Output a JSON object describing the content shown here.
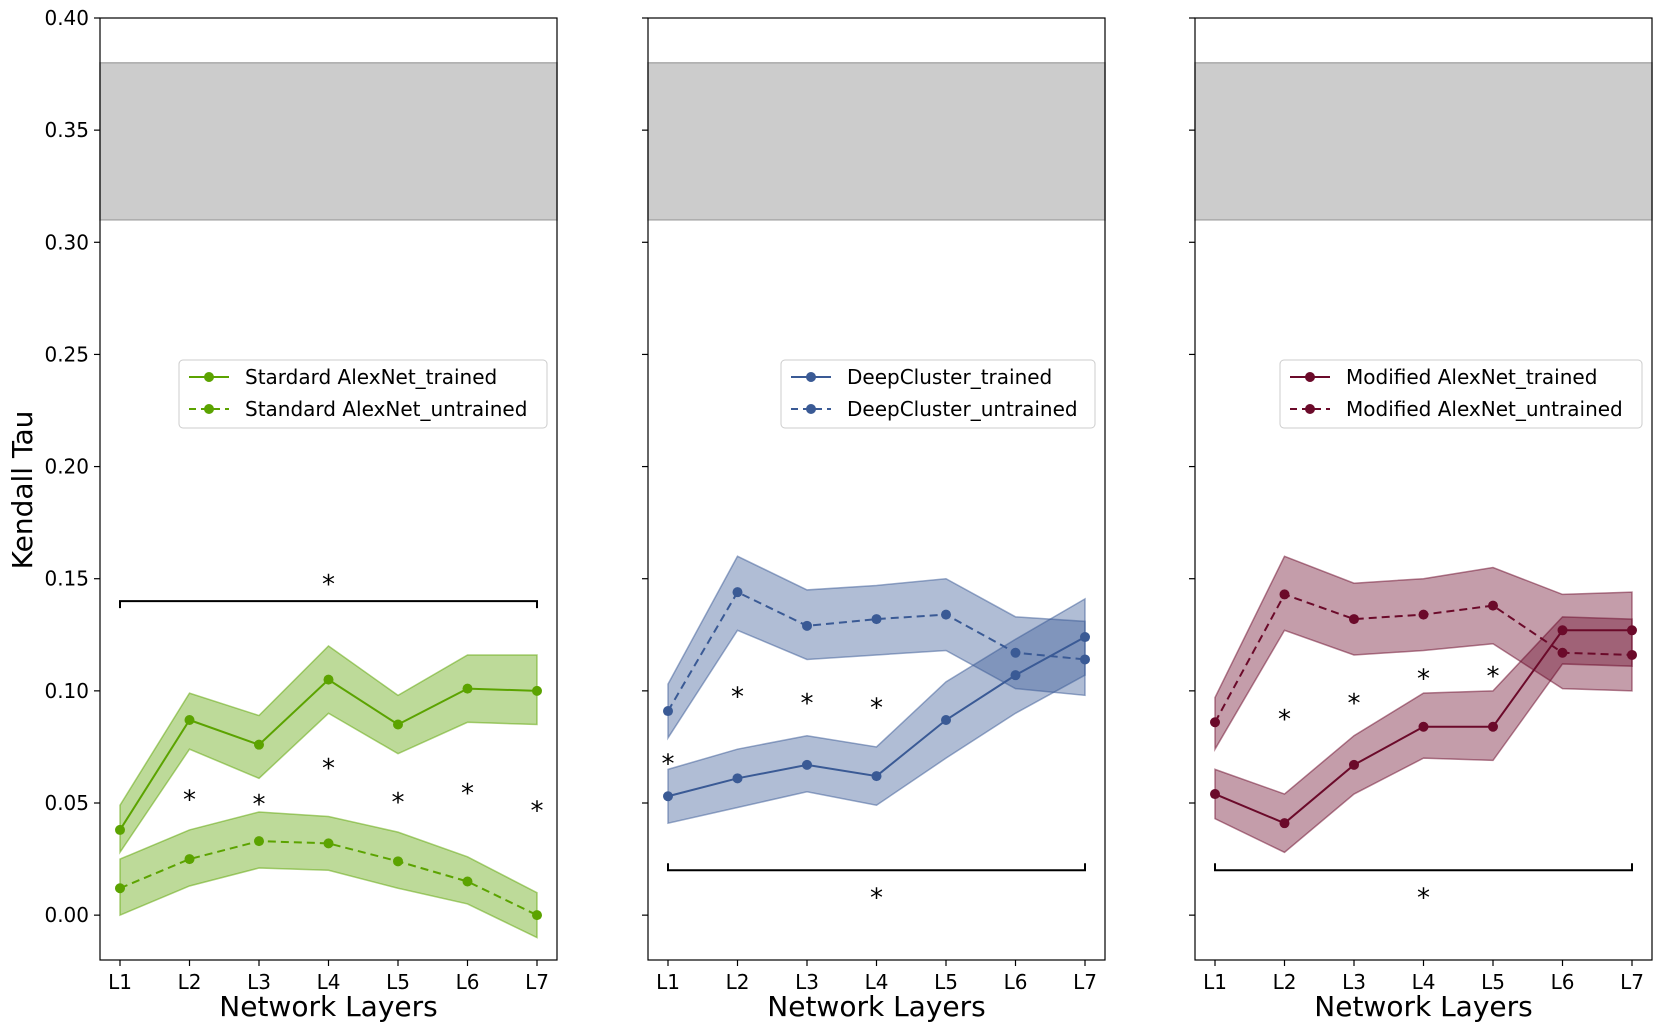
{
  "chart_data": [
    {
      "type": "line",
      "categories": [
        "L1",
        "L2",
        "L3",
        "L4",
        "L5",
        "L6",
        "L7"
      ],
      "ylabel": "Kendall Tau",
      "xlabel": "Network Layers",
      "ylim": [
        -0.02,
        0.4
      ],
      "yticks": [
        "0.00",
        "0.05",
        "0.10",
        "0.15",
        "0.20",
        "0.25",
        "0.30",
        "0.35",
        "0.40"
      ],
      "reference_band": [
        0.31,
        0.38
      ],
      "grid": false,
      "legend_position": "center-right",
      "color": "#5ba300",
      "series": [
        {
          "name": "Stardard AlexNet_trained",
          "style": "solid",
          "values": [
            0.038,
            0.087,
            0.076,
            0.105,
            0.085,
            0.101,
            0.1
          ],
          "band_low": [
            0.028,
            0.074,
            0.061,
            0.09,
            0.072,
            0.086,
            0.085
          ],
          "band_high": [
            0.049,
            0.099,
            0.089,
            0.12,
            0.098,
            0.116,
            0.116
          ]
        },
        {
          "name": "Standard AlexNet_untrained",
          "style": "dashed",
          "values": [
            0.012,
            0.025,
            0.033,
            0.032,
            0.024,
            0.015,
            0.0
          ],
          "band_low": [
            0.0,
            0.013,
            0.021,
            0.02,
            0.012,
            0.005,
            -0.01
          ],
          "band_high": [
            0.025,
            0.038,
            0.046,
            0.044,
            0.037,
            0.026,
            0.01
          ]
        }
      ],
      "annotations": [
        {
          "text": "*",
          "x": 1,
          "y": 0.052
        },
        {
          "text": "*",
          "x": 2,
          "y": 0.05
        },
        {
          "text": "*",
          "x": 3,
          "y": 0.066
        },
        {
          "text": "*",
          "x": 4,
          "y": 0.051
        },
        {
          "text": "*",
          "x": 5,
          "y": 0.055
        },
        {
          "text": "*",
          "x": 6,
          "y": 0.047
        }
      ],
      "bracket": {
        "from": 0,
        "to": 6,
        "y": 0.14,
        "label": "*",
        "label_above": true
      }
    },
    {
      "type": "line",
      "categories": [
        "L1",
        "L2",
        "L3",
        "L4",
        "L5",
        "L6",
        "L7"
      ],
      "ylabel": "",
      "xlabel": "Network Layers",
      "ylim": [
        -0.02,
        0.4
      ],
      "reference_band": [
        0.31,
        0.38
      ],
      "grid": false,
      "legend_position": "center-right",
      "color": "#3a5a95",
      "series": [
        {
          "name": "DeepCluster_trained",
          "style": "solid",
          "values": [
            0.053,
            0.061,
            0.067,
            0.062,
            0.087,
            0.107,
            0.124
          ],
          "band_low": [
            0.041,
            0.048,
            0.055,
            0.049,
            0.07,
            0.09,
            0.107
          ],
          "band_high": [
            0.065,
            0.074,
            0.08,
            0.075,
            0.104,
            0.123,
            0.141
          ]
        },
        {
          "name": "DeepCluster_untrained",
          "style": "dashed",
          "values": [
            0.091,
            0.144,
            0.129,
            0.132,
            0.134,
            0.117,
            0.114
          ],
          "band_low": [
            0.079,
            0.127,
            0.114,
            0.116,
            0.118,
            0.101,
            0.098
          ],
          "band_high": [
            0.103,
            0.16,
            0.145,
            0.147,
            0.15,
            0.133,
            0.131
          ]
        }
      ],
      "annotations": [
        {
          "text": "*",
          "x": 0,
          "y": 0.068
        },
        {
          "text": "*",
          "x": 1,
          "y": 0.098
        },
        {
          "text": "*",
          "x": 2,
          "y": 0.095
        },
        {
          "text": "*",
          "x": 3,
          "y": 0.093
        }
      ],
      "bracket": {
        "from": 0,
        "to": 6,
        "y": 0.02,
        "label": "*",
        "label_above": false
      }
    },
    {
      "type": "line",
      "categories": [
        "L1",
        "L2",
        "L3",
        "L4",
        "L5",
        "L6",
        "L7"
      ],
      "ylabel": "",
      "xlabel": "Network Layers",
      "ylim": [
        -0.02,
        0.4
      ],
      "reference_band": [
        0.31,
        0.38
      ],
      "grid": false,
      "legend_position": "center-right",
      "color": "#6b0a2a",
      "series": [
        {
          "name": "Modified AlexNet_trained",
          "style": "solid",
          "values": [
            0.054,
            0.041,
            0.067,
            0.084,
            0.084,
            0.127,
            0.127
          ],
          "band_low": [
            0.043,
            0.028,
            0.054,
            0.07,
            0.069,
            0.112,
            0.111
          ],
          "band_high": [
            0.065,
            0.054,
            0.08,
            0.099,
            0.1,
            0.133,
            0.132
          ]
        },
        {
          "name": "Modified AlexNet_untrained",
          "style": "dashed",
          "values": [
            0.086,
            0.143,
            0.132,
            0.134,
            0.138,
            0.117,
            0.116
          ],
          "band_low": [
            0.074,
            0.127,
            0.116,
            0.118,
            0.121,
            0.101,
            0.1
          ],
          "band_high": [
            0.097,
            0.16,
            0.148,
            0.15,
            0.155,
            0.143,
            0.144
          ]
        }
      ],
      "annotations": [
        {
          "text": "*",
          "x": 1,
          "y": 0.088
        },
        {
          "text": "*",
          "x": 2,
          "y": 0.095
        },
        {
          "text": "*",
          "x": 3,
          "y": 0.106
        },
        {
          "text": "*",
          "x": 4,
          "y": 0.107
        }
      ],
      "bracket": {
        "from": 0,
        "to": 6,
        "y": 0.02,
        "label": "*",
        "label_above": false
      }
    }
  ]
}
